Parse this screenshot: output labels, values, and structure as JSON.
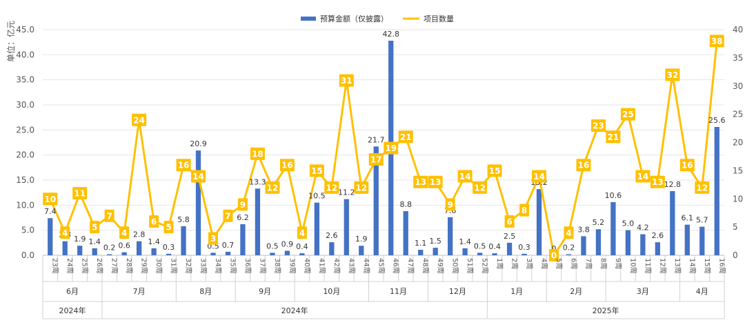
{
  "chart_data": {
    "type": "bar+line",
    "legend": [
      "预算金额（仅披露）",
      "项目数量"
    ],
    "legend_position": "top-center",
    "ylabel_left": "单位：亿元",
    "y_left_range": [
      0,
      45
    ],
    "y_left_ticks": [
      "0.0",
      "5.0",
      "10.0",
      "15.0",
      "20.0",
      "25.0",
      "30.0",
      "35.0",
      "40.0",
      "45.0"
    ],
    "y_right_range": [
      0,
      40
    ],
    "y_right_ticks": [
      "0",
      "5",
      "10",
      "15",
      "20",
      "25",
      "30",
      "35",
      "40"
    ],
    "grid": true,
    "colors": {
      "bar": "#4472C4",
      "line": "#FFC000"
    },
    "weeks": [
      "23周",
      "24周",
      "25周",
      "26周",
      "27周",
      "28周",
      "29周",
      "30周",
      "31周",
      "32周",
      "33周",
      "34周",
      "35周",
      "36周",
      "37周",
      "38周",
      "39周",
      "40周",
      "41周",
      "42周",
      "43周",
      "44周",
      "45周",
      "46周",
      "47周",
      "48周",
      "49周",
      "50周",
      "51周",
      "52周",
      "1周",
      "2周",
      "3周",
      "4周",
      "5周",
      "6周",
      "7周",
      "8周",
      "9周",
      "10周",
      "11周",
      "12周",
      "13周",
      "14周",
      "15周",
      "16周"
    ],
    "budget_labels": [
      "7.4",
      "2.8",
      "1.9",
      "1.4",
      "0.2",
      "0.6",
      "2.8",
      "1.4",
      "0.3",
      "5.8",
      "20.9",
      "0.5",
      "0.7",
      "6.2",
      "13.3",
      "0.5",
      "0.9",
      "0.4",
      "10.5",
      "2.6",
      "11.2",
      "1.9",
      "21.7",
      "42.8",
      "8.8",
      "1.1",
      "1.5",
      "7.6",
      "1.4",
      "0.5",
      "0.4",
      "2.5",
      "0.3",
      "13.2",
      "0",
      "0.2",
      "3.8",
      "5.2",
      "10.6",
      "5.0",
      "4.2",
      "2.6",
      "12.8",
      "6.1",
      "5.7",
      "25.6"
    ],
    "budget_values": [
      7.4,
      2.8,
      1.9,
      1.4,
      0.2,
      0.6,
      2.8,
      1.4,
      0.3,
      5.8,
      20.9,
      0.5,
      0.7,
      6.2,
      13.3,
      0.5,
      0.9,
      0.4,
      10.5,
      2.6,
      11.2,
      1.9,
      21.7,
      42.8,
      8.8,
      1.1,
      1.5,
      7.6,
      1.4,
      0.5,
      0.4,
      2.5,
      0.3,
      13.2,
      0,
      0.2,
      3.8,
      5.2,
      10.6,
      5.0,
      4.2,
      2.6,
      12.8,
      6.1,
      5.7,
      25.6
    ],
    "counts": [
      10,
      4,
      11,
      5,
      7,
      4,
      24,
      6,
      5,
      16,
      14,
      3,
      7,
      9,
      18,
      12,
      16,
      4,
      15,
      12,
      31,
      12,
      17,
      19,
      21,
      13,
      13,
      9,
      14,
      12,
      15,
      6,
      8,
      14,
      0,
      4,
      16,
      23,
      21,
      25,
      14,
      13,
      32,
      16,
      12,
      38
    ],
    "months": [
      {
        "label": "6月",
        "start": 0,
        "end": 3
      },
      {
        "label": "7月",
        "start": 4,
        "end": 8
      },
      {
        "label": "8月",
        "start": 9,
        "end": 12
      },
      {
        "label": "9月",
        "start": 13,
        "end": 16
      },
      {
        "label": "10月",
        "start": 17,
        "end": 21
      },
      {
        "label": "11月",
        "start": 22,
        "end": 25
      },
      {
        "label": "12月",
        "start": 26,
        "end": 29
      },
      {
        "label": "1月",
        "start": 30,
        "end": 33
      },
      {
        "label": "2月",
        "start": 34,
        "end": 37
      },
      {
        "label": "3月",
        "start": 38,
        "end": 42
      },
      {
        "label": "4月",
        "start": 43,
        "end": 45
      }
    ],
    "years": [
      {
        "label": "2024年",
        "start": 0,
        "end": 3
      },
      {
        "label": "2024年",
        "start": 4,
        "end": 29
      },
      {
        "label": "2025年",
        "start": 30,
        "end": 45
      }
    ]
  }
}
